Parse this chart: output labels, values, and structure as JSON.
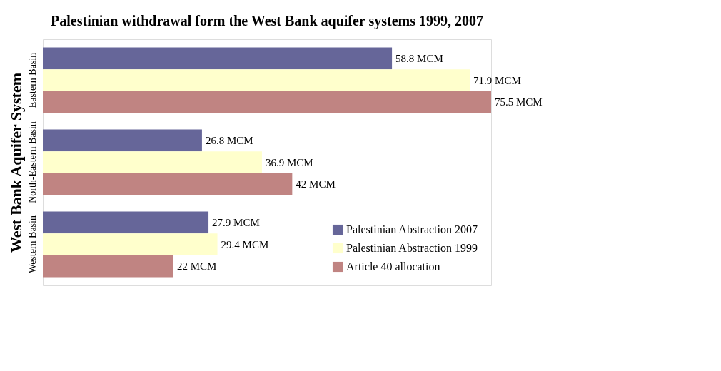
{
  "chart_data": {
    "type": "bar",
    "orientation": "horizontal",
    "title": "Palestinian withdrawal form the West Bank aquifer systems 1999, 2007",
    "ylabel": "West Bank Aquifer System",
    "categories": [
      "Eastern Basin",
      "North-Eastern Basin",
      "Western Basin"
    ],
    "series": [
      {
        "name": "Palestinian Abstraction 2007",
        "color": "#666699",
        "values": [
          58.8,
          26.8,
          27.9
        ],
        "value_labels": [
          "58.8  MCM",
          "26.8 MCM",
          "27.9 MCM"
        ]
      },
      {
        "name": "Palestinian Abstraction 1999",
        "color": "#ffffcc",
        "values": [
          71.9,
          36.9,
          29.4
        ],
        "value_labels": [
          "71.9 MCM",
          "36.9 MCM",
          "29.4 MCM"
        ]
      },
      {
        "name": "Article 40 allocation",
        "color": "#c08482",
        "values": [
          75.5,
          42,
          22
        ],
        "value_labels": [
          "75.5 MCM",
          "42 MCM",
          "22 MCM"
        ]
      }
    ],
    "legend": "bottom right"
  }
}
